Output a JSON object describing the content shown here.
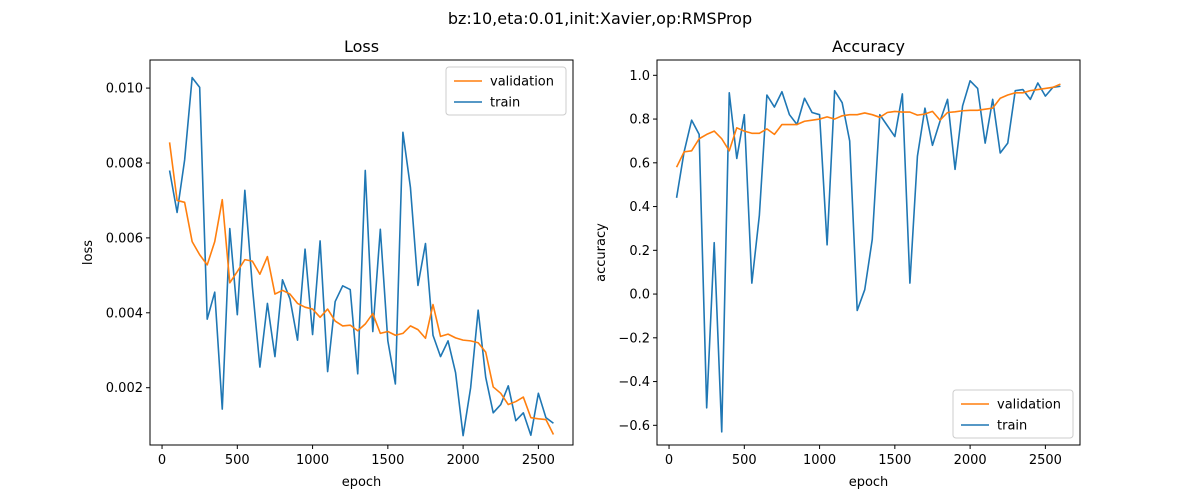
{
  "figure_title": "bz:10,eta:0.01,init:Xavier,op:RMSProp",
  "colors": {
    "validation": "#ff7f0e",
    "train": "#1f77b4"
  },
  "chart_data": [
    {
      "type": "line",
      "title": "Loss",
      "xlabel": "epoch",
      "ylabel": "loss",
      "xlim": [
        -80,
        2730
      ],
      "ylim": [
        0.00047,
        0.01075
      ],
      "xticks": [
        0,
        500,
        1000,
        1500,
        2000,
        2500
      ],
      "yticks": [
        0.002,
        0.004,
        0.006,
        0.008,
        0.01
      ],
      "ytick_labels": [
        "0.002",
        "0.004",
        "0.006",
        "0.008",
        "0.010"
      ],
      "legend_position": "top-right",
      "legend_order": [
        "validation",
        "train"
      ],
      "grid": false,
      "x": [
        50,
        100,
        150,
        200,
        250,
        300,
        350,
        400,
        450,
        500,
        550,
        600,
        650,
        700,
        750,
        800,
        850,
        900,
        950,
        1000,
        1050,
        1100,
        1150,
        1200,
        1250,
        1300,
        1350,
        1400,
        1450,
        1500,
        1550,
        1600,
        1650,
        1700,
        1750,
        1800,
        1850,
        1900,
        1950,
        2000,
        2050,
        2100,
        2150,
        2200,
        2250,
        2300,
        2350,
        2400,
        2450,
        2500,
        2550,
        2600
      ],
      "series": [
        {
          "name": "validation",
          "color": "#ff7f0e",
          "values": [
            0.00855,
            0.007,
            0.00695,
            0.0059,
            0.00555,
            0.00528,
            0.0059,
            0.00702,
            0.0048,
            0.0051,
            0.00542,
            0.00538,
            0.00503,
            0.0055,
            0.0045,
            0.0046,
            0.0045,
            0.00425,
            0.00415,
            0.0041,
            0.00388,
            0.0041,
            0.00378,
            0.00365,
            0.00367,
            0.00352,
            0.0037,
            0.00398,
            0.00345,
            0.0035,
            0.0034,
            0.00345,
            0.00365,
            0.00355,
            0.00332,
            0.00422,
            0.00337,
            0.00343,
            0.00333,
            0.00327,
            0.00325,
            0.0032,
            0.00295,
            0.00202,
            0.00185,
            0.00155,
            0.00163,
            0.00175,
            0.0012,
            0.00117,
            0.00115,
            0.00075
          ]
        },
        {
          "name": "train",
          "color": "#1f77b4",
          "values": [
            0.0078,
            0.00668,
            0.00808,
            0.01028,
            0.01002,
            0.00383,
            0.00455,
            0.00143,
            0.00625,
            0.00395,
            0.00727,
            0.0047,
            0.00255,
            0.00425,
            0.00283,
            0.00488,
            0.00437,
            0.00327,
            0.0057,
            0.00342,
            0.00592,
            0.00243,
            0.0043,
            0.00472,
            0.00462,
            0.00237,
            0.0078,
            0.0035,
            0.00623,
            0.00325,
            0.0021,
            0.00882,
            0.00735,
            0.00473,
            0.00585,
            0.0034,
            0.00283,
            0.00325,
            0.0024,
            0.00072,
            0.002,
            0.00407,
            0.00228,
            0.00133,
            0.00155,
            0.00205,
            0.00112,
            0.00133,
            0.00073,
            0.00185,
            0.0012,
            0.00105
          ]
        }
      ]
    },
    {
      "type": "line",
      "title": "Accuracy",
      "xlabel": "epoch",
      "ylabel": "accuracy",
      "xlim": [
        -80,
        2730
      ],
      "ylim": [
        -0.69,
        1.07
      ],
      "xticks": [
        0,
        500,
        1000,
        1500,
        2000,
        2500
      ],
      "yticks": [
        -0.6,
        -0.4,
        -0.2,
        0.0,
        0.2,
        0.4,
        0.6,
        0.8,
        1.0
      ],
      "ytick_labels": [
        "−0.6",
        "−0.4",
        "−0.2",
        "0.0",
        "0.2",
        "0.4",
        "0.6",
        "0.8",
        "1.0"
      ],
      "legend_position": "bottom-right",
      "legend_order": [
        "validation",
        "train"
      ],
      "grid": false,
      "x": [
        50,
        100,
        150,
        200,
        250,
        300,
        350,
        400,
        450,
        500,
        550,
        600,
        650,
        700,
        750,
        800,
        850,
        900,
        950,
        1000,
        1050,
        1100,
        1150,
        1200,
        1250,
        1300,
        1350,
        1400,
        1450,
        1500,
        1550,
        1600,
        1650,
        1700,
        1750,
        1800,
        1850,
        1900,
        1950,
        2000,
        2050,
        2100,
        2150,
        2200,
        2250,
        2300,
        2350,
        2400,
        2450,
        2500,
        2550,
        2600
      ],
      "series": [
        {
          "name": "validation",
          "color": "#ff7f0e",
          "values": [
            0.58,
            0.65,
            0.655,
            0.71,
            0.73,
            0.745,
            0.71,
            0.655,
            0.76,
            0.745,
            0.735,
            0.735,
            0.755,
            0.73,
            0.775,
            0.775,
            0.775,
            0.79,
            0.795,
            0.8,
            0.81,
            0.8,
            0.815,
            0.82,
            0.82,
            0.828,
            0.82,
            0.808,
            0.83,
            0.835,
            0.832,
            0.832,
            0.818,
            0.823,
            0.835,
            0.795,
            0.83,
            0.833,
            0.838,
            0.84,
            0.84,
            0.845,
            0.85,
            0.895,
            0.91,
            0.92,
            0.92,
            0.93,
            0.935,
            0.94,
            0.945,
            0.96
          ]
        },
        {
          "name": "train",
          "color": "#1f77b4",
          "values": [
            0.44,
            0.65,
            0.795,
            0.73,
            -0.52,
            0.235,
            -0.63,
            0.92,
            0.62,
            0.82,
            0.05,
            0.36,
            0.91,
            0.855,
            0.925,
            0.82,
            0.775,
            0.895,
            0.83,
            0.82,
            0.225,
            0.93,
            0.875,
            0.7,
            -0.075,
            0.02,
            0.25,
            0.82,
            0.77,
            0.72,
            0.915,
            0.05,
            0.63,
            0.85,
            0.68,
            0.79,
            0.89,
            0.57,
            0.86,
            0.975,
            0.94,
            0.69,
            0.89,
            0.645,
            0.69,
            0.93,
            0.935,
            0.89,
            0.965,
            0.905,
            0.945,
            0.95
          ]
        }
      ]
    }
  ]
}
